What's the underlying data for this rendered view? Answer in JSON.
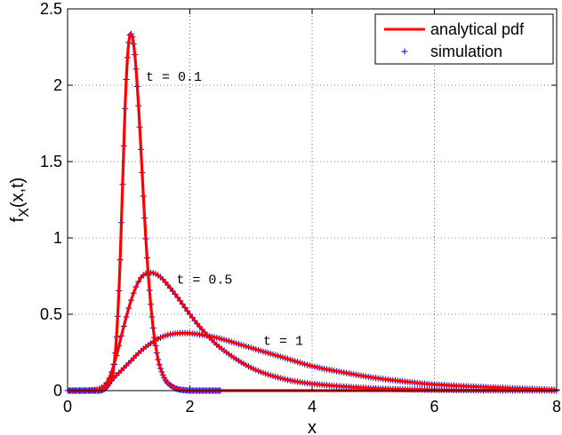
{
  "chart_data": {
    "type": "line",
    "xlabel": "x",
    "ylabel": "f_X(x,t)",
    "xlim": [
      0,
      8
    ],
    "ylim": [
      0,
      2.5
    ],
    "xticks": [
      "0",
      "2",
      "4",
      "6",
      "8"
    ],
    "xtick_values": [
      0,
      2,
      4,
      6,
      8
    ],
    "yticks": [
      "0",
      "0.5",
      "1",
      "1.5",
      "2",
      "2.5"
    ],
    "ytick_values": [
      0,
      0.5,
      1,
      1.5,
      2,
      2.5
    ],
    "grid": true,
    "legend_position": "top-right",
    "legend": [
      {
        "label": "analytical pdf",
        "style": "line",
        "color": "#ff0000"
      },
      {
        "label": "simulation",
        "style": "plus-marker",
        "color": "#0000ff"
      }
    ],
    "annotations": [
      {
        "text": "t = 0.1",
        "x": 1.28,
        "y": 2.03
      },
      {
        "text": "t = 0.5",
        "x": 1.78,
        "y": 0.7
      },
      {
        "text": "t = 1",
        "x": 3.2,
        "y": 0.3
      }
    ],
    "series": [
      {
        "t": 0.1,
        "color": "#ff0000",
        "x": [
          0,
          0.5,
          0.6,
          0.7,
          0.75,
          0.8,
          0.85,
          0.9,
          0.95,
          1.0,
          1.05,
          1.1,
          1.15,
          1.2,
          1.25,
          1.3,
          1.35,
          1.4,
          1.45,
          1.5,
          1.6,
          1.7,
          1.8,
          2.0,
          2.2,
          2.5,
          3,
          8
        ],
        "y": [
          0,
          0,
          0.01,
          0.06,
          0.14,
          0.35,
          0.75,
          1.35,
          1.95,
          2.28,
          2.33,
          2.2,
          1.93,
          1.58,
          1.2,
          0.87,
          0.61,
          0.41,
          0.27,
          0.17,
          0.07,
          0.03,
          0.01,
          0,
          0,
          0,
          0,
          0
        ]
      },
      {
        "t": 0.5,
        "color": "#ff0000",
        "x": [
          0,
          0.4,
          0.5,
          0.6,
          0.7,
          0.8,
          0.9,
          1.0,
          1.1,
          1.2,
          1.3,
          1.4,
          1.5,
          1.6,
          1.8,
          2.0,
          2.2,
          2.5,
          3.0,
          3.5,
          4.0,
          5.0,
          6.0,
          8.0
        ],
        "y": [
          0,
          0,
          0.005,
          0.03,
          0.1,
          0.23,
          0.39,
          0.54,
          0.66,
          0.74,
          0.77,
          0.77,
          0.75,
          0.71,
          0.61,
          0.5,
          0.4,
          0.28,
          0.15,
          0.08,
          0.045,
          0.015,
          0.005,
          0
        ]
      },
      {
        "t": 1,
        "color": "#ff0000",
        "x": [
          0,
          0.3,
          0.5,
          0.6,
          0.7,
          0.8,
          0.9,
          1.0,
          1.2,
          1.4,
          1.6,
          1.8,
          2.0,
          2.2,
          2.5,
          3.0,
          3.5,
          4.0,
          4.5,
          5.0,
          5.5,
          6.0,
          7.0,
          8.0
        ],
        "y": [
          0,
          0,
          0.01,
          0.03,
          0.06,
          0.1,
          0.14,
          0.18,
          0.26,
          0.32,
          0.36,
          0.375,
          0.375,
          0.365,
          0.34,
          0.28,
          0.22,
          0.16,
          0.12,
          0.085,
          0.06,
          0.04,
          0.02,
          0.005
        ]
      }
    ],
    "simulation_x_range": [
      {
        "t": 0.1,
        "x": [
          0,
          2.5
        ]
      },
      {
        "t": 0.5,
        "x": [
          0,
          8
        ]
      },
      {
        "t": 1,
        "x": [
          0,
          8
        ]
      }
    ]
  }
}
